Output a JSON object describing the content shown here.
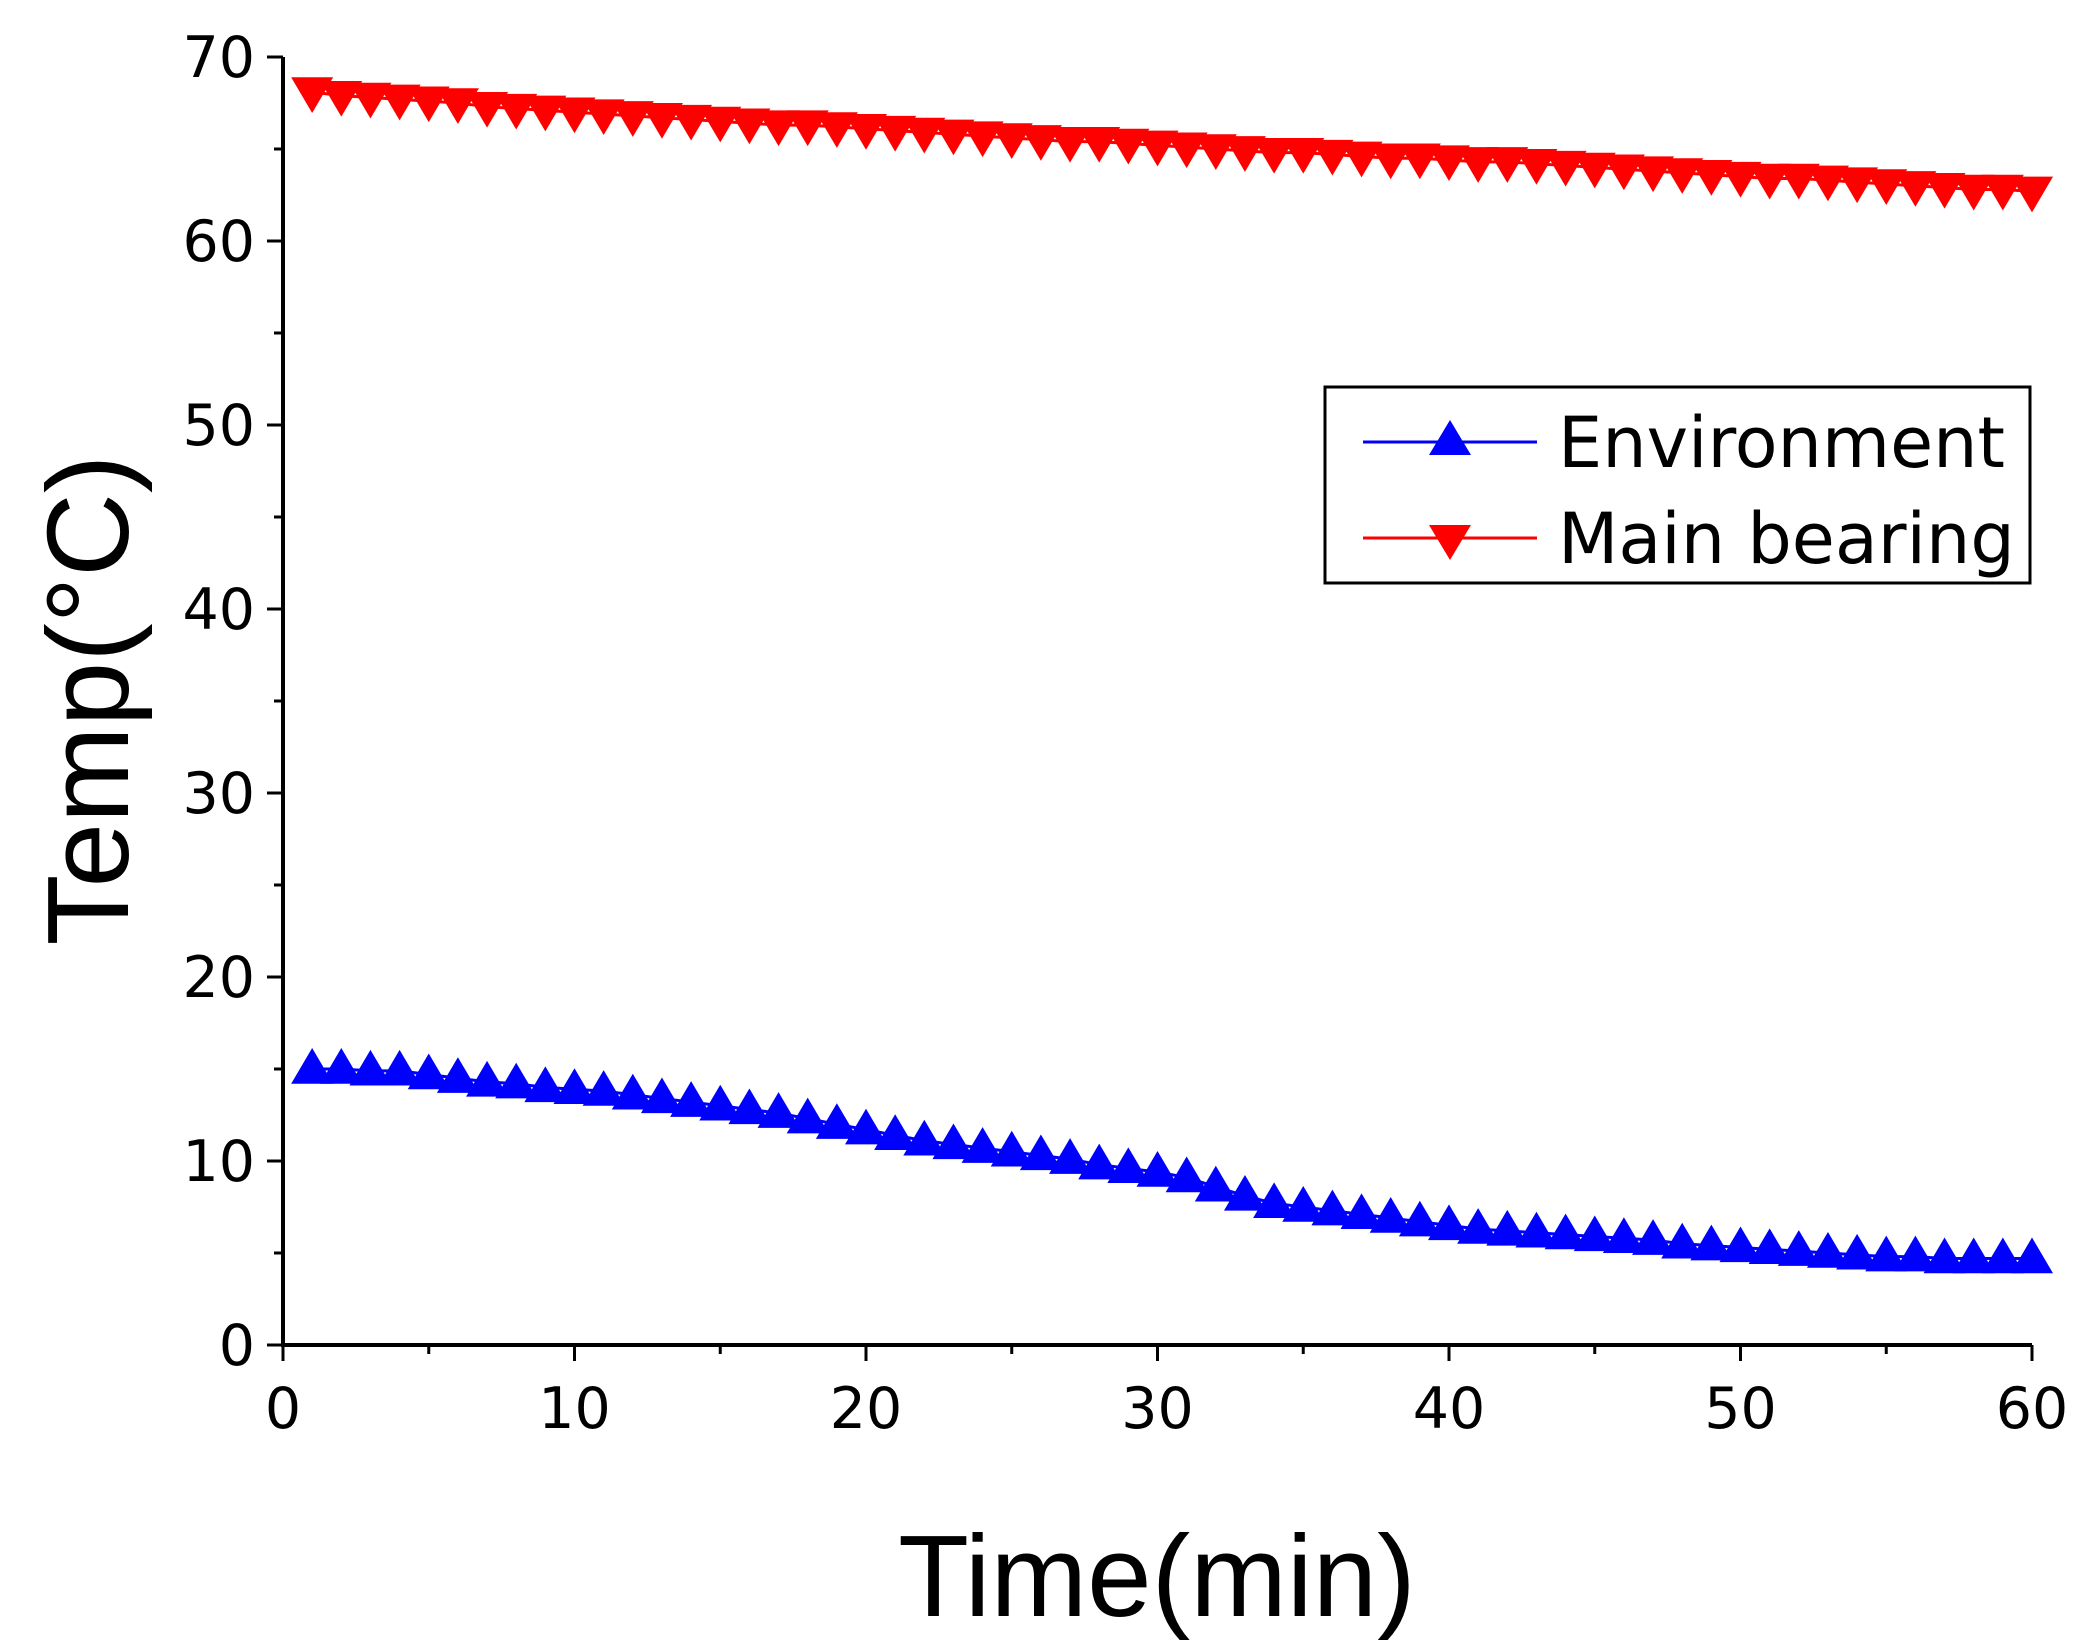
{
  "chart_data": {
    "type": "line",
    "title": "",
    "xlabel": "Time(min)",
    "ylabel": "Temp(°C)",
    "xlim": [
      0,
      60
    ],
    "ylim": [
      0,
      70
    ],
    "xticks": [
      0,
      10,
      20,
      30,
      40,
      50,
      60
    ],
    "yticks": [
      0,
      10,
      20,
      30,
      40,
      50,
      60,
      70
    ],
    "grid": false,
    "legend_position": "right-upper",
    "x": [
      1,
      2,
      3,
      4,
      5,
      6,
      7,
      8,
      9,
      10,
      11,
      12,
      13,
      14,
      15,
      16,
      17,
      18,
      19,
      20,
      21,
      22,
      23,
      24,
      25,
      26,
      27,
      28,
      29,
      30,
      31,
      32,
      33,
      34,
      35,
      36,
      37,
      38,
      39,
      40,
      41,
      42,
      43,
      44,
      45,
      46,
      47,
      48,
      49,
      50,
      51,
      52,
      53,
      54,
      55,
      56,
      57,
      58,
      59,
      60
    ],
    "series": [
      {
        "name": "Environment",
        "color": "#0000ff",
        "marker": "triangle-up",
        "values": [
          15.0,
          15.0,
          14.9,
          14.9,
          14.7,
          14.5,
          14.3,
          14.2,
          14.0,
          13.9,
          13.8,
          13.6,
          13.4,
          13.2,
          13.0,
          12.8,
          12.6,
          12.3,
          12.0,
          11.7,
          11.4,
          11.1,
          10.9,
          10.7,
          10.5,
          10.3,
          10.1,
          9.8,
          9.6,
          9.4,
          9.1,
          8.6,
          8.1,
          7.7,
          7.5,
          7.3,
          7.1,
          6.9,
          6.7,
          6.5,
          6.3,
          6.2,
          6.1,
          6.0,
          5.9,
          5.8,
          5.7,
          5.5,
          5.4,
          5.3,
          5.2,
          5.1,
          5.0,
          4.9,
          4.8,
          4.8,
          4.7,
          4.7,
          4.7,
          4.7
        ]
      },
      {
        "name": "Main bearing",
        "color": "#ff0000",
        "marker": "triangle-down",
        "values": [
          68.1,
          67.9,
          67.8,
          67.7,
          67.6,
          67.5,
          67.3,
          67.2,
          67.1,
          67.0,
          66.9,
          66.8,
          66.7,
          66.6,
          66.5,
          66.4,
          66.3,
          66.3,
          66.2,
          66.1,
          66.0,
          65.9,
          65.8,
          65.7,
          65.6,
          65.5,
          65.4,
          65.4,
          65.3,
          65.2,
          65.1,
          65.0,
          64.9,
          64.8,
          64.8,
          64.7,
          64.6,
          64.5,
          64.5,
          64.4,
          64.3,
          64.3,
          64.2,
          64.1,
          64.0,
          63.9,
          63.8,
          63.7,
          63.6,
          63.5,
          63.4,
          63.4,
          63.3,
          63.2,
          63.1,
          63.0,
          62.9,
          62.8,
          62.8,
          62.7
        ]
      }
    ]
  }
}
